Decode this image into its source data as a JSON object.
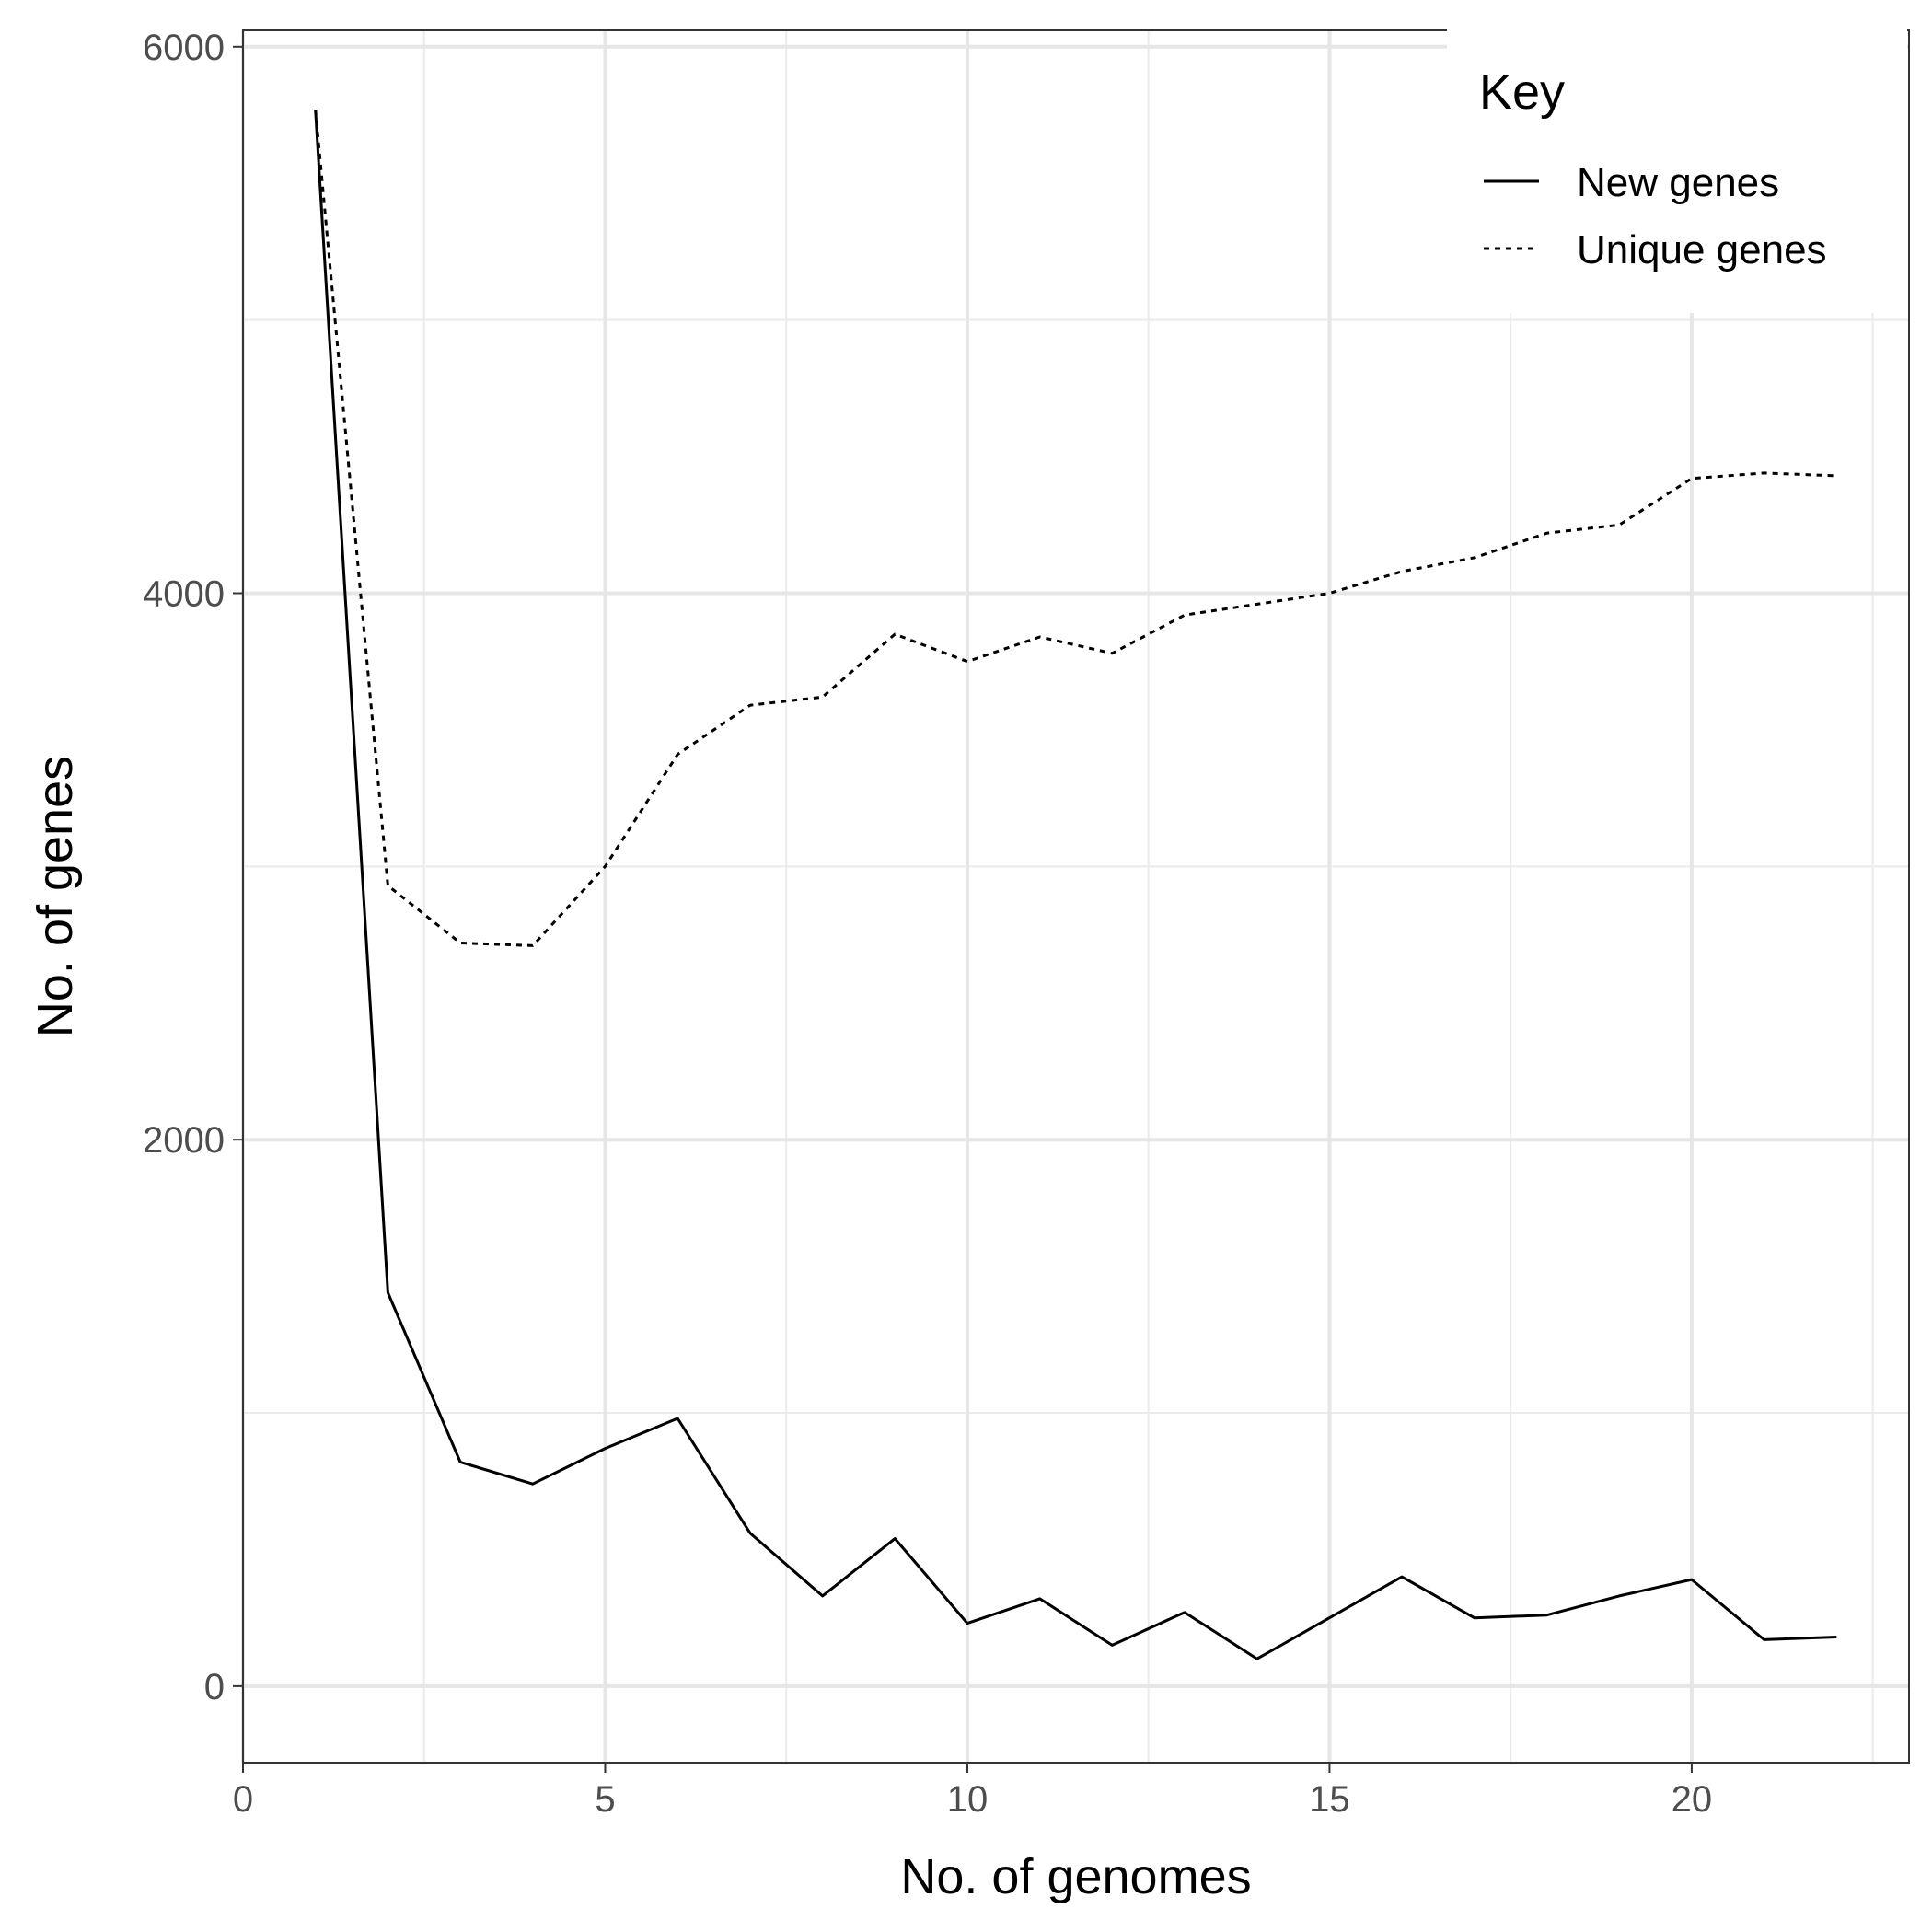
{
  "chart_data": {
    "type": "line",
    "title": "",
    "xlabel": "No. of genomes",
    "ylabel": "No. of genes",
    "xlim": [
      0,
      23
    ],
    "ylim": [
      -280,
      6060
    ],
    "x_ticks": [
      0,
      5,
      10,
      15,
      20
    ],
    "x_tick_labels": [
      "0",
      "5",
      "10",
      "15",
      "20"
    ],
    "y_ticks": [
      0,
      2000,
      4000,
      6000
    ],
    "y_tick_labels": [
      "0",
      "2000",
      "4000",
      "6000"
    ],
    "grid": true,
    "legend": {
      "title": "Key",
      "placement": "top-right"
    },
    "x": [
      1,
      2,
      3,
      4,
      5,
      6,
      7,
      8,
      9,
      10,
      11,
      12,
      13,
      14,
      15,
      16,
      17,
      18,
      19,
      20,
      21,
      22
    ],
    "series": [
      {
        "name": "New genes",
        "line_style": "solid",
        "color": "#000000",
        "values": [
          5770,
          1440,
          820,
          740,
          870,
          980,
          560,
          330,
          540,
          230,
          320,
          150,
          270,
          100,
          250,
          400,
          250,
          260,
          330,
          390,
          170,
          180
        ]
      },
      {
        "name": "Unique genes",
        "line_style": "dotted",
        "color": "#000000",
        "values": [
          5770,
          2930,
          2720,
          2710,
          3000,
          3410,
          3590,
          3620,
          3850,
          3750,
          3840,
          3780,
          3920,
          3960,
          4000,
          4080,
          4130,
          4220,
          4250,
          4420,
          4440,
          4430
        ]
      }
    ]
  }
}
